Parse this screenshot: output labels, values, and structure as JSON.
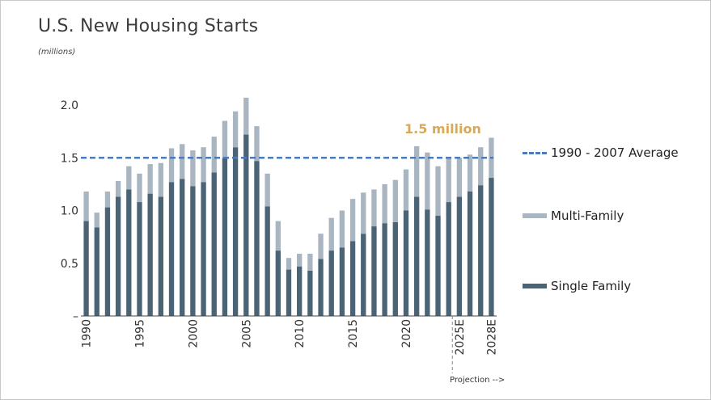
{
  "chart_data": {
    "type": "bar",
    "stacked": true,
    "title": "U.S. New Housing Starts",
    "subtitle": "(millions)",
    "ylim": [
      0,
      2.0
    ],
    "y_ticks": [
      "–",
      "0.5",
      "1.0",
      "1.5",
      "2.0"
    ],
    "x": [
      "1990",
      "1991",
      "1992",
      "1993",
      "1994",
      "1995",
      "1996",
      "1997",
      "1998",
      "1999",
      "2000",
      "2001",
      "2002",
      "2003",
      "2004",
      "2005",
      "2006",
      "2007",
      "2008",
      "2009",
      "2010",
      "2011",
      "2012",
      "2013",
      "2014",
      "2015",
      "2016",
      "2017",
      "2018",
      "2019",
      "2020",
      "2021",
      "2022",
      "2023",
      "2024",
      "2025E",
      "2026E",
      "2027E",
      "2028E"
    ],
    "x_tick_labels": [
      {
        "x": "1990",
        "label": "1990"
      },
      {
        "x": "1995",
        "label": "1995"
      },
      {
        "x": "2000",
        "label": "2000"
      },
      {
        "x": "2005",
        "label": "2005"
      },
      {
        "x": "2010",
        "label": "2010"
      },
      {
        "x": "2015",
        "label": "2015"
      },
      {
        "x": "2020",
        "label": "2020"
      },
      {
        "x": "2025E",
        "label": "2025E"
      },
      {
        "x": "2028E",
        "label": "2028E"
      }
    ],
    "series": [
      {
        "name": "Single Family",
        "color": "#4a6476",
        "values": [
          0.9,
          0.84,
          1.03,
          1.13,
          1.2,
          1.08,
          1.16,
          1.13,
          1.27,
          1.3,
          1.23,
          1.27,
          1.36,
          1.5,
          1.6,
          1.72,
          1.47,
          1.04,
          0.62,
          0.44,
          0.47,
          0.43,
          0.54,
          0.62,
          0.65,
          0.71,
          0.78,
          0.85,
          0.88,
          0.89,
          1.0,
          1.13,
          1.01,
          0.95,
          1.08,
          1.13,
          1.18,
          1.24,
          1.31
        ]
      },
      {
        "name": "Multi-Family",
        "color": "#a9b5c0",
        "values": [
          0.28,
          0.14,
          0.15,
          0.15,
          0.22,
          0.27,
          0.28,
          0.32,
          0.32,
          0.33,
          0.34,
          0.33,
          0.34,
          0.35,
          0.34,
          0.35,
          0.33,
          0.31,
          0.28,
          0.11,
          0.12,
          0.16,
          0.24,
          0.31,
          0.35,
          0.4,
          0.39,
          0.35,
          0.37,
          0.4,
          0.39,
          0.48,
          0.54,
          0.47,
          0.43,
          0.37,
          0.35,
          0.36,
          0.38
        ]
      },
      {
        "name": "1990 - 2007 Average",
        "color": "#4a7bbf",
        "value": 1.5,
        "style": "dashed"
      }
    ],
    "annotations": [
      {
        "text": "1.5 million",
        "color": "#d7aa5a"
      },
      {
        "text": "Projection -->"
      }
    ],
    "projection_start": "2025E",
    "legend_position": "right"
  },
  "legend": {
    "average": "1990 - 2007 Average",
    "multi": "Multi-Family",
    "single": "Single Family"
  },
  "annotation": "1.5 million",
  "projection_label": "Projection -->"
}
